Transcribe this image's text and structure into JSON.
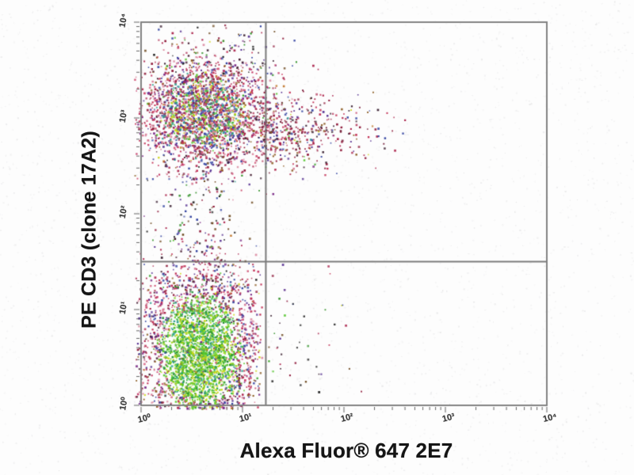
{
  "figure": {
    "background": "#fdfdfd",
    "frame_color": "#7c7c7c",
    "gate_color": "#6b6b6b",
    "tick_color": "#4a4a4a",
    "axis_title_color": "#151515",
    "tick_label_color": "#3a3a3a"
  },
  "chart_data": {
    "type": "scatter",
    "subtype": "flow-cytometry-density-dot-plot",
    "title": "",
    "xlabel": "Alexa Fluor® 647 2E7",
    "ylabel": "PE CD3 (clone 17A2)",
    "x_scale": "log10",
    "y_scale": "log10",
    "x_range_decades": [
      0,
      4
    ],
    "y_range_decades": [
      0,
      4
    ],
    "x_tick_labels": [
      "10⁰",
      "10¹",
      "10²",
      "10³",
      "10⁴"
    ],
    "y_tick_labels": [
      "10⁰",
      "10¹",
      "10²",
      "10³",
      "10⁴"
    ],
    "minor_tick_multiples": [
      2,
      3,
      4,
      5,
      6,
      7,
      8,
      9
    ],
    "grid": false,
    "legend": false,
    "quadrant_gate": {
      "x_value_decade": 1.23,
      "y_value_decade": 1.5
    },
    "palettes": {
      "green_core": [
        "#2f9e1f",
        "#4fc427",
        "#7dd41f",
        "#a6d816",
        "#35b54d",
        "#1f8a2f",
        "#cdd414",
        "#5bc92e",
        "#2a9d8f",
        "#8fc814"
      ],
      "mixed_core": [
        "#3fae2f",
        "#c12c52",
        "#2e3f9e",
        "#7a2a86",
        "#cdd414",
        "#2a9d8f",
        "#c0762a",
        "#57c52b",
        "#a81c46",
        "#d9849c",
        "#4a5fc4",
        "#93203f"
      ],
      "warm_edge": [
        "#a81c46",
        "#c12c52",
        "#8f1a3a",
        "#cf4a6e",
        "#b23458",
        "#d9849c",
        "#7a2a86",
        "#512a8e",
        "#2e3f9e",
        "#40182c",
        "#8a5a20",
        "#c2305f"
      ],
      "tail_red": [
        "#a81c46",
        "#8f1a3a",
        "#c12c52",
        "#6e1530",
        "#512a8e",
        "#2e3f9e",
        "#8a5a20",
        "#3a1f30",
        "#b23458",
        "#93203f"
      ],
      "sparse_dark": [
        "#8f1a3a",
        "#512a8e",
        "#3a1f30",
        "#a81c46",
        "#2e3f9e",
        "#6e4a20",
        "#2f8f25",
        "#222222"
      ],
      "all_mix": [
        "#a81c46",
        "#2f9e1f",
        "#2e3f9e",
        "#7a2a86",
        "#cdd414",
        "#2a9d8f",
        "#c0762a",
        "#d9849c",
        "#4fc427",
        "#c12c52"
      ]
    },
    "populations": [
      {
        "name": "double-negative cluster (2E7- CD3-)",
        "style": "gauss",
        "n": 3200,
        "cx": 0.58,
        "cy": 0.55,
        "sx": 0.3,
        "sy": 0.45,
        "xmin": -0.05,
        "xmax": 1.2,
        "ymin": -0.04,
        "ymax": 1.75,
        "core": "green_core",
        "edge": "warm_edge"
      },
      {
        "name": "CD3+ cluster (2E7- CD3+)",
        "style": "gauss",
        "n": 2600,
        "cx": 0.62,
        "cy": 3.04,
        "sx": 0.32,
        "sy": 0.28,
        "xmin": -0.06,
        "xmax": 1.55,
        "ymin": 2.2,
        "ymax": 3.85,
        "core": "mixed_core",
        "edge": "warm_edge"
      },
      {
        "name": "double-positive tail (2E7+ CD3+)",
        "style": "halftail",
        "n": 430,
        "x0": 1.18,
        "sx": 0.52,
        "xmax": 2.62,
        "cy": 2.86,
        "sy": 0.2,
        "ymin": 2.35,
        "ymax": 3.3,
        "core": "tail_red",
        "edge": "tail_red"
      },
      {
        "name": "bridge between clusters",
        "style": "band",
        "n": 210,
        "cx": 0.6,
        "sx": 0.28,
        "xmin": 0.02,
        "xmax": 1.18,
        "ymin": 1.2,
        "ymax": 2.6,
        "core": "sparse_dark",
        "edge": "sparse_dark"
      },
      {
        "name": "sparse events above CD3+ cluster",
        "style": "band",
        "n": 120,
        "cx": 0.75,
        "sx": 0.45,
        "xmin": 0.0,
        "xmax": 2.1,
        "ymin": 3.35,
        "ymax": 3.97,
        "core": "sparse_dark",
        "edge": "sparse_dark"
      },
      {
        "name": "sparse 2E7+ CD3- events",
        "style": "halftail",
        "n": 48,
        "x0": 1.24,
        "sx": 0.42,
        "xmax": 2.25,
        "cy": 0.85,
        "sy": 0.45,
        "ymin": 0.08,
        "ymax": 1.62,
        "core": "sparse_dark",
        "edge": "sparse_dark"
      }
    ]
  }
}
